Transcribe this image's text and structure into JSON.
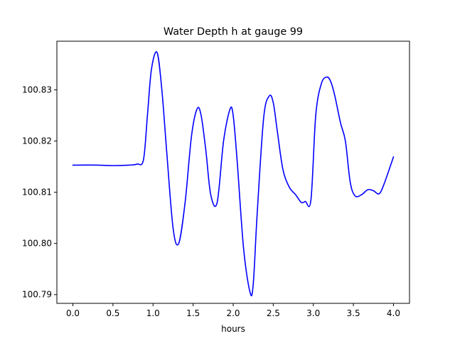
{
  "chart_data": {
    "type": "line",
    "title": "Water Depth h at gauge 99",
    "xlabel": "hours",
    "ylabel": "",
    "xlim": [
      -0.2,
      4.2
    ],
    "ylim": [
      100.7883,
      100.8395
    ],
    "xticks": [
      0.0,
      0.5,
      1.0,
      1.5,
      2.0,
      2.5,
      3.0,
      3.5,
      4.0
    ],
    "xtick_labels": [
      "0.0",
      "0.5",
      "1.0",
      "1.5",
      "2.0",
      "2.5",
      "3.0",
      "3.5",
      "4.0"
    ],
    "yticks": [
      100.79,
      100.8,
      100.81,
      100.82,
      100.83
    ],
    "ytick_labels": [
      "100.79",
      "100.80",
      "100.81",
      "100.82",
      "100.83"
    ],
    "grid": false,
    "series": [
      {
        "color": "#0000ff",
        "x": [
          0.0,
          0.3,
          0.5,
          0.7,
          0.8,
          0.88,
          0.93,
          0.98,
          1.05,
          1.11,
          1.17,
          1.25,
          1.32,
          1.4,
          1.48,
          1.55,
          1.6,
          1.66,
          1.72,
          1.8,
          1.88,
          1.96,
          2.0,
          2.05,
          2.13,
          2.21,
          2.25,
          2.3,
          2.38,
          2.45,
          2.5,
          2.55,
          2.62,
          2.7,
          2.78,
          2.85,
          2.9,
          2.97,
          3.03,
          3.1,
          3.17,
          3.22,
          3.27,
          3.34,
          3.4,
          3.46,
          3.52,
          3.6,
          3.68,
          3.75,
          3.82,
          3.88,
          4.0
        ],
        "y": [
          100.8153,
          100.8153,
          100.8152,
          100.8153,
          100.8155,
          100.8163,
          100.825,
          100.834,
          100.8373,
          100.83,
          100.818,
          100.803,
          100.8,
          100.808,
          100.821,
          100.8263,
          100.825,
          100.818,
          100.8095,
          100.808,
          100.82,
          100.8262,
          100.825,
          100.816,
          100.799,
          100.7905,
          100.792,
          100.806,
          100.8245,
          100.8288,
          100.8275,
          100.822,
          100.8145,
          100.811,
          100.8095,
          100.808,
          100.8082,
          100.8085,
          100.825,
          100.8312,
          100.8325,
          100.8315,
          100.8287,
          100.8235,
          100.82,
          100.812,
          100.8093,
          100.8095,
          100.8105,
          100.8103,
          100.8097,
          100.8115,
          100.8169
        ]
      }
    ]
  }
}
